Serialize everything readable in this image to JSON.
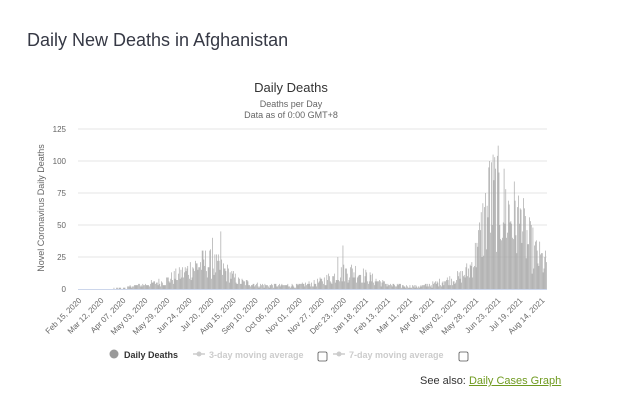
{
  "page": {
    "title": "Daily New Deaths in Afghanistan",
    "see_also_label": "See also:",
    "see_also_link": "Daily Cases Graph"
  },
  "colors": {
    "bar": "#a6a6a6",
    "grid": "#e6e6e6",
    "axis_text": "#666666",
    "link": "#6f9a1f",
    "legend_inactive": "#cccccc"
  },
  "legend": {
    "items": [
      {
        "label": "Daily Deaths",
        "active": true
      },
      {
        "label": "3-day moving average",
        "active": false
      },
      {
        "label": "7-day moving average",
        "active": false
      }
    ]
  },
  "chart_data": {
    "type": "bar",
    "title": "Daily Deaths",
    "subtitle_line1": "Deaths per Day",
    "subtitle_line2": "Data as of 0:00 GMT+8",
    "ylabel": "Novel Coronavirus Daily Deaths",
    "xlabel": "",
    "ylim": [
      0,
      125
    ],
    "yticks": [
      0,
      25,
      50,
      75,
      100,
      125
    ],
    "grid": true,
    "legend_position": "bottom",
    "x_start": "2020-02-15",
    "x_end": "2021-08-20",
    "xtick_labels": [
      "Feb 15, 2020",
      "Mar 12, 2020",
      "Apr 07, 2020",
      "May 03, 2020",
      "May 29, 2020",
      "Jun 24, 2020",
      "Jul 20, 2020",
      "Aug 15, 2020",
      "Sep 10, 2020",
      "Oct 06, 2020",
      "Nov 01, 2020",
      "Nov 27, 2020",
      "Dec 23, 2020",
      "Jan 18, 2021",
      "Feb 13, 2021",
      "Mar 11, 2021",
      "Apr 06, 2021",
      "May 02, 2021",
      "May 28, 2021",
      "Jun 23, 2021",
      "Jul 19, 2021",
      "Aug 14, 2021"
    ],
    "series": [
      {
        "name": "Daily Deaths",
        "envelope_days": [
          0,
          30,
          50,
          80,
          100,
          120,
          135,
          150,
          160,
          175,
          190,
          220,
          260,
          280,
          300,
          310,
          320,
          330,
          340,
          355,
          370,
          400,
          420,
          430,
          440,
          450,
          460,
          470,
          478,
          485,
          492,
          500,
          510,
          520,
          530,
          540,
          552
        ],
        "envelope_values": [
          0,
          0,
          1,
          4,
          6,
          12,
          18,
          22,
          20,
          14,
          6,
          3,
          3,
          5,
          10,
          13,
          15,
          14,
          10,
          6,
          3,
          2,
          4,
          7,
          8,
          10,
          15,
          30,
          55,
          72,
          78,
          70,
          62,
          55,
          40,
          28,
          20
        ],
        "peaks": [
          [
            158,
            40
          ],
          [
            168,
            45
          ],
          [
            128,
            16
          ],
          [
            312,
            34
          ],
          [
            306,
            25
          ],
          [
            485,
            100
          ],
          [
            522,
            62
          ],
          [
            470,
            36
          ]
        ]
      }
    ]
  }
}
